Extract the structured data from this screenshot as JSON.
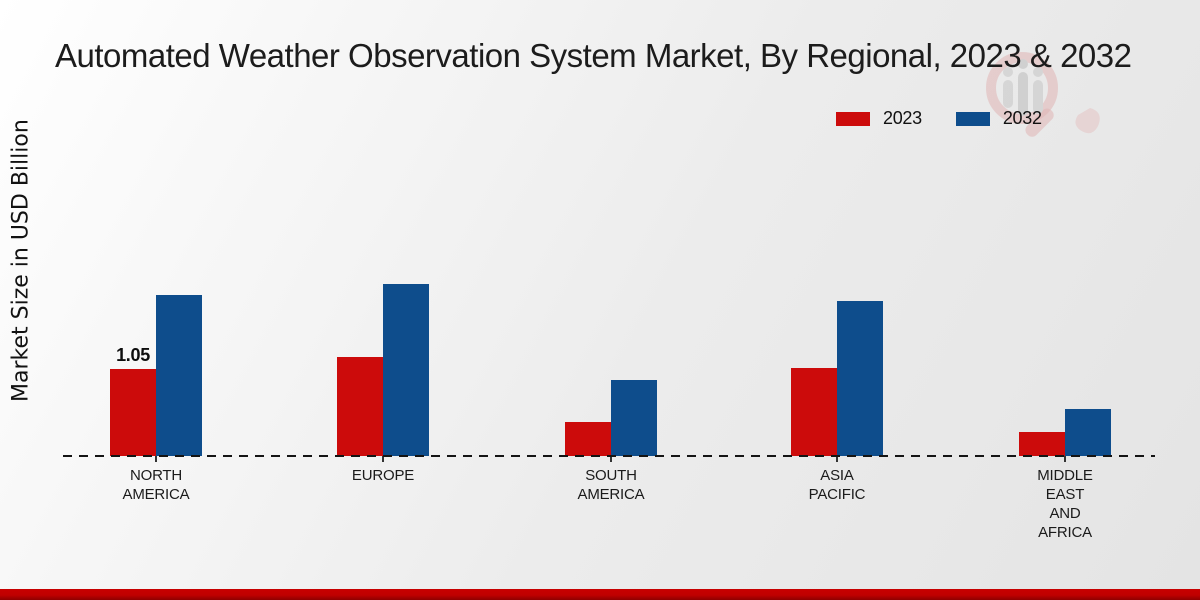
{
  "title": "Automated Weather Observation System Market, By Regional, 2023 & 2032",
  "y_axis_label": "Market Size in USD Billion",
  "legend": {
    "items": [
      {
        "label": "2023",
        "color": "#cc0b0b"
      },
      {
        "label": "2032",
        "color": "#0e4d8c"
      }
    ]
  },
  "colors": {
    "series_2023": "#cc0b0b",
    "series_2032": "#0e4d8c",
    "footer_band": "#c00000",
    "baseline": "#141414",
    "title_text": "#1c1c1c"
  },
  "watermark_icon": "market-research-magnifier-logo",
  "chart_data": {
    "type": "bar",
    "title": "Automated Weather Observation System Market, By Regional, 2023 & 2032",
    "xlabel": "",
    "ylabel": "Market Size in USD Billion",
    "categories": [
      "NORTH AMERICA",
      "EUROPE",
      "SOUTH AMERICA",
      "ASIA PACIFIC",
      "MIDDLE EAST AND AFRICA"
    ],
    "series": [
      {
        "name": "2023",
        "color": "#cc0b0b",
        "values": [
          1.05,
          1.19,
          0.41,
          1.06,
          0.29
        ]
      },
      {
        "name": "2032",
        "color": "#0e4d8c",
        "values": [
          1.94,
          2.08,
          0.92,
          1.87,
          0.57
        ]
      }
    ],
    "ylim": [
      0,
      2.5
    ],
    "grid": false,
    "y_axis_ticks_visible": false,
    "baseline_style": "dashed",
    "legend_position": "top-right",
    "annotations": [
      {
        "text": "1.05",
        "category_index": 0,
        "series": "2023"
      }
    ]
  }
}
